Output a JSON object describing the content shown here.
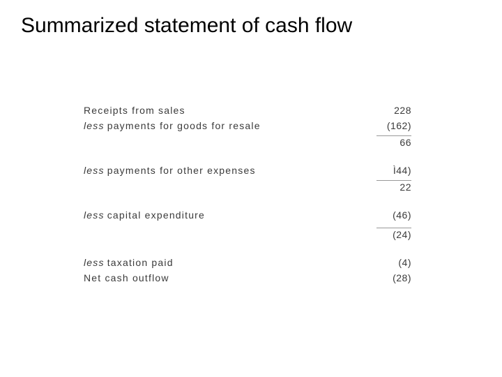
{
  "title": "Summarized statement of cash flow",
  "colors": {
    "background": "#ffffff",
    "title_color": "#000000",
    "text_color": "#3a3a3a",
    "border_color": "#999999"
  },
  "typography": {
    "title_fontsize": 30,
    "body_fontsize": 14,
    "body_letter_spacing": 1.2
  },
  "rows": {
    "r0": {
      "label": "Receipts from sales",
      "prefix": "",
      "value": "228"
    },
    "r1": {
      "label": "payments for goods for resale",
      "prefix": "less",
      "value": "(162)"
    },
    "r2": {
      "label": "",
      "prefix": "",
      "value": "66"
    },
    "r3": {
      "label": "payments for other expenses",
      "prefix": "less",
      "value": "Ì44)"
    },
    "r4": {
      "label": "",
      "prefix": "",
      "value": "22"
    },
    "r5": {
      "label": "capital expenditure",
      "prefix": "less",
      "value": "(46)"
    },
    "r6": {
      "label": "",
      "prefix": "",
      "value": "(24)"
    },
    "r7": {
      "label": "taxation paid",
      "prefix": "less",
      "value": "(4)"
    },
    "r8": {
      "label": "Net cash outflow",
      "prefix": "",
      "value": "(28)"
    }
  }
}
